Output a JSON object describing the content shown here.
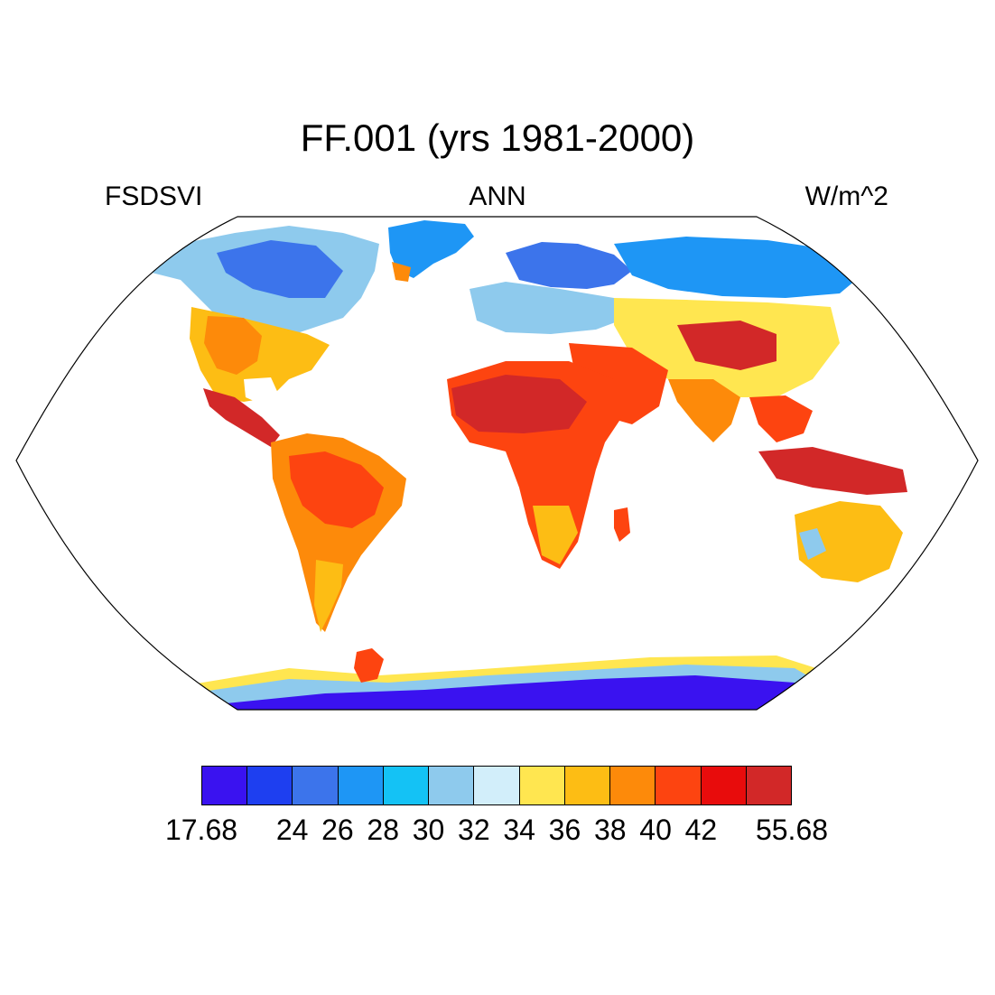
{
  "title": "FF.001 (yrs 1981-2000)",
  "subtitle_left": "FSDSVI",
  "subtitle_center": "ANN",
  "subtitle_right": "W/m^2",
  "colorbar": {
    "colors": [
      "#3a12f0",
      "#1e3ff0",
      "#3c74eb",
      "#1e96f5",
      "#14c2f5",
      "#8ecaed",
      "#d2eefa",
      "#ffe650",
      "#fdbd14",
      "#fd8a0a",
      "#fd4410",
      "#e80c0c",
      "#d22828"
    ],
    "labels": [
      "17.68",
      "24",
      "26",
      "28",
      "30",
      "32",
      "34",
      "36",
      "38",
      "40",
      "42",
      "55.68"
    ],
    "label_positions": [
      0,
      2,
      3,
      4,
      5,
      6,
      7,
      8,
      9,
      10,
      11,
      13
    ]
  },
  "map": {
    "projection": "Robinson",
    "land_color_scale": "colorbar.colors"
  }
}
